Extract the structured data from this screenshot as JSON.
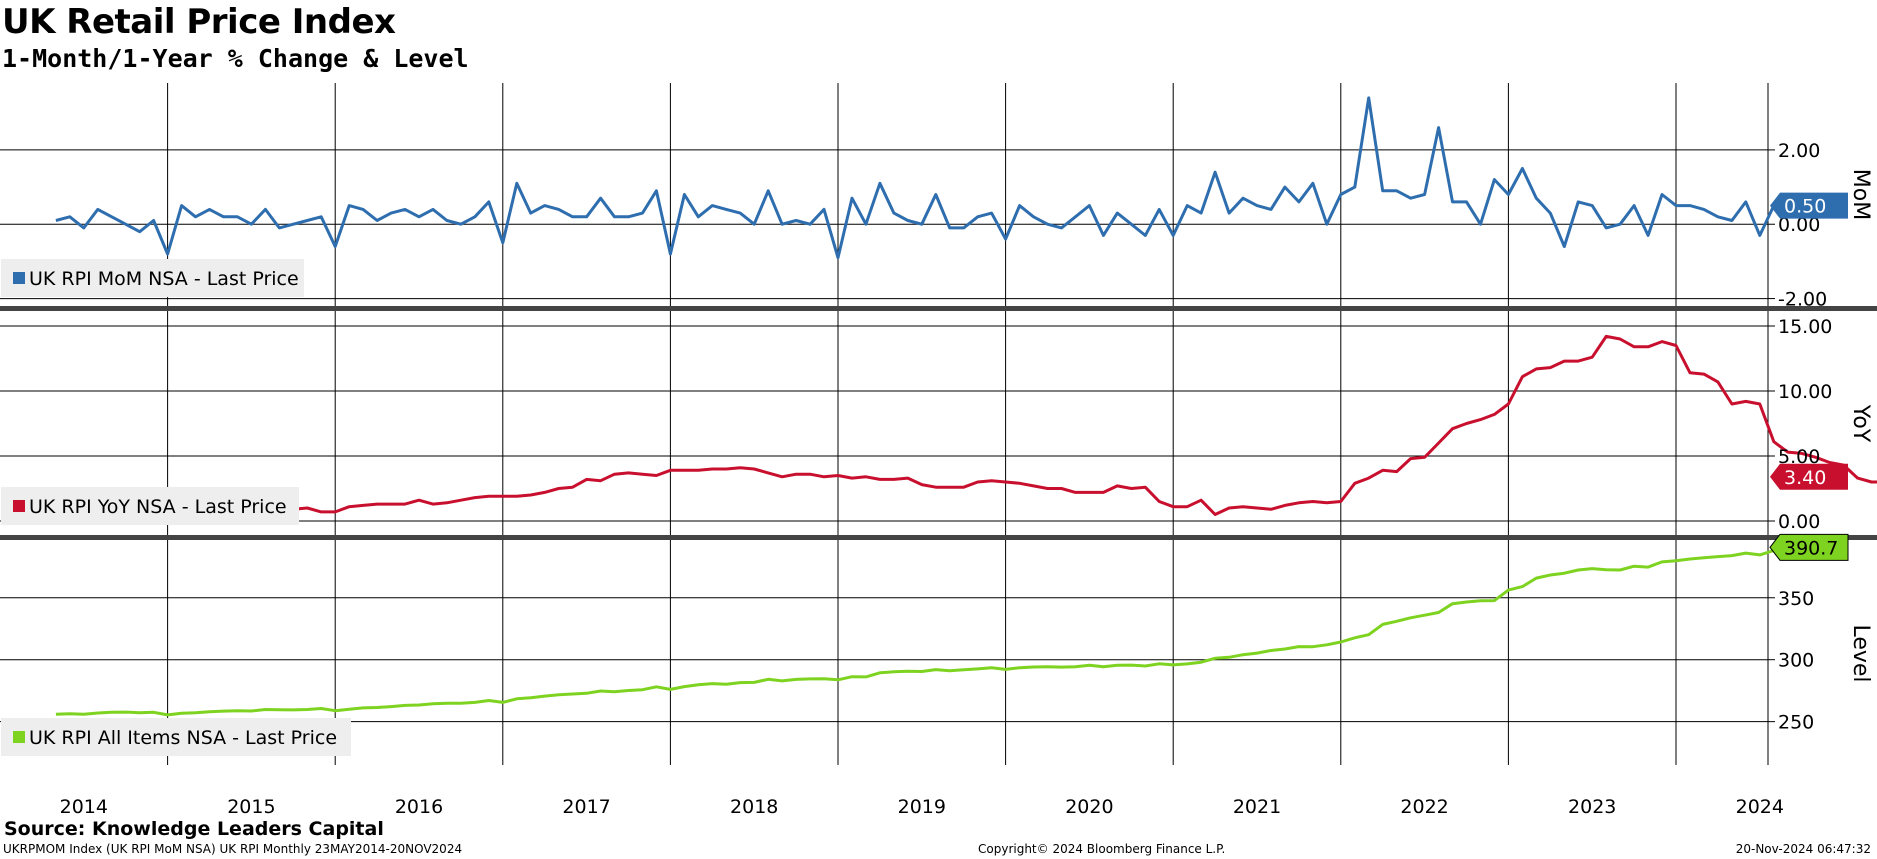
{
  "title": "UK Retail Price Index",
  "subtitle": "1-Month/1-Year % Change & Level",
  "source": "Source: Knowledge Leaders Capital",
  "footer": {
    "left": "UKRPMOM Index (UK RPI MoM NSA) UK RPI  Monthly 23MAY2014-20NOV2024",
    "center": "Copyright© 2024 Bloomberg Finance L.P.",
    "right": "20-Nov-2024 06:47:32"
  },
  "colors": {
    "mom": "#2e6eaf",
    "yoy": "#c8102e",
    "level": "#7ed321"
  },
  "chart_data": [
    {
      "type": "line",
      "axis_title": "MoM",
      "series": [
        {
          "name": "UK RPI MoM NSA - Last Price",
          "last_label": "0.50",
          "start": "2014-05",
          "values": [
            0.1,
            0.2,
            -0.1,
            0.4,
            0.2,
            0.0,
            -0.2,
            0.1,
            -0.8,
            0.5,
            0.2,
            0.4,
            0.2,
            0.2,
            0.0,
            0.4,
            -0.1,
            0.0,
            0.1,
            0.2,
            -0.6,
            0.5,
            0.4,
            0.1,
            0.3,
            0.4,
            0.2,
            0.4,
            0.1,
            0.0,
            0.2,
            0.6,
            -0.5,
            1.1,
            0.3,
            0.5,
            0.4,
            0.2,
            0.2,
            0.7,
            0.2,
            0.2,
            0.3,
            0.9,
            -0.8,
            0.8,
            0.2,
            0.5,
            0.4,
            0.3,
            0.0,
            0.9,
            0.0,
            0.1,
            0.0,
            0.4,
            -0.9,
            0.7,
            0.0,
            1.1,
            0.3,
            0.1,
            0.0,
            0.8,
            -0.1,
            -0.1,
            0.2,
            0.3,
            -0.4,
            0.5,
            0.2,
            0.0,
            -0.1,
            0.2,
            0.5,
            -0.3,
            0.3,
            0.0,
            -0.3,
            0.4,
            -0.3,
            0.5,
            0.3,
            1.4,
            0.3,
            0.7,
            0.5,
            0.4,
            1.0,
            0.6,
            1.1,
            0.0,
            0.8,
            1.0,
            3.4,
            0.9,
            0.9,
            0.7,
            0.8,
            2.6,
            0.6,
            0.6,
            0.0,
            1.2,
            0.8,
            1.5,
            0.7,
            0.3,
            -0.6,
            0.6,
            0.5,
            -0.1,
            0.0,
            0.5,
            -0.3,
            0.8,
            0.5,
            0.5,
            0.4,
            0.2,
            0.1,
            0.6,
            -0.3,
            0.5
          ]
        }
      ],
      "yticks": [
        "2.00",
        "0.00",
        "-2.00"
      ],
      "ylim": [
        -2.2,
        3.8
      ]
    },
    {
      "type": "line",
      "axis_title": "YoY",
      "series": [
        {
          "name": "UK RPI YoY NSA - Last Price",
          "last_label": "3.40",
          "start": "2014-05",
          "values": [
            2.4,
            2.5,
            2.5,
            2.4,
            2.3,
            2.3,
            2.3,
            2.1,
            1.9,
            1.6,
            1.0,
            0.9,
            0.9,
            0.8,
            0.8,
            0.9,
            0.9,
            0.9,
            1.0,
            0.7,
            0.7,
            1.1,
            1.2,
            1.3,
            1.3,
            1.3,
            1.6,
            1.3,
            1.4,
            1.6,
            1.8,
            1.9,
            1.9,
            1.9,
            2.0,
            2.2,
            2.5,
            2.6,
            3.2,
            3.1,
            3.6,
            3.7,
            3.6,
            3.5,
            3.9,
            3.9,
            3.9,
            4.0,
            4.0,
            4.1,
            4.0,
            3.7,
            3.4,
            3.6,
            3.6,
            3.4,
            3.5,
            3.3,
            3.4,
            3.2,
            3.2,
            3.3,
            2.8,
            2.6,
            2.6,
            2.6,
            3.0,
            3.1,
            3.0,
            2.9,
            2.7,
            2.5,
            2.5,
            2.2,
            2.2,
            2.2,
            2.7,
            2.5,
            2.6,
            1.5,
            1.1,
            1.1,
            1.6,
            0.5,
            1.0,
            1.1,
            1.0,
            0.9,
            1.2,
            1.4,
            1.5,
            1.4,
            1.5,
            2.9,
            3.3,
            3.9,
            3.8,
            4.8,
            4.9,
            6.0,
            7.1,
            7.5,
            7.8,
            8.2,
            9.0,
            11.1,
            11.7,
            11.8,
            12.3,
            12.3,
            12.6,
            14.2,
            14.0,
            13.4,
            13.4,
            13.8,
            13.5,
            11.4,
            11.3,
            10.7,
            9.0,
            9.2,
            9.0,
            6.1,
            5.3,
            5.2,
            4.9,
            4.5,
            4.3,
            3.3,
            3.0,
            3.0,
            3.6,
            3.5,
            2.7,
            3.4
          ]
        }
      ],
      "yticks": [
        "15.00",
        "10.00",
        "5.00",
        "0.00"
      ],
      "ylim": [
        -1.0,
        16.0
      ]
    },
    {
      "type": "line",
      "axis_title": "Level",
      "series": [
        {
          "name": "UK RPI All Items NSA - Last Price",
          "last_label": "390.7",
          "start": "2014-05",
          "values": [
            255.9,
            256.3,
            256.0,
            257.0,
            257.6,
            257.7,
            257.1,
            257.5,
            255.4,
            256.7,
            257.1,
            258.0,
            258.5,
            258.8,
            258.6,
            259.8,
            259.6,
            259.5,
            259.8,
            260.6,
            258.8,
            260.0,
            261.1,
            261.4,
            262.1,
            263.1,
            263.4,
            264.4,
            264.9,
            264.8,
            265.5,
            267.1,
            265.5,
            268.4,
            269.3,
            270.6,
            271.7,
            272.3,
            272.9,
            274.7,
            274.2,
            275.1,
            275.8,
            278.1,
            276.0,
            278.3,
            279.7,
            280.7,
            280.1,
            281.5,
            281.7,
            284.2,
            282.9,
            284.1,
            284.5,
            284.6,
            283.8,
            286.3,
            286.1,
            289.4,
            290.2,
            290.6,
            290.5,
            292.0,
            291.0,
            291.9,
            292.6,
            293.5,
            292.2,
            293.5,
            294.1,
            294.3,
            294.0,
            294.3,
            295.5,
            294.3,
            295.5,
            295.6,
            294.9,
            296.7,
            295.8,
            296.6,
            298.0,
            301.1,
            301.9,
            304.0,
            305.3,
            307.4,
            308.6,
            310.6,
            310.5,
            312.0,
            314.3,
            317.7,
            320.2,
            328.5,
            331.0,
            333.8,
            335.9,
            338.1,
            345.2,
            346.6,
            347.6,
            347.7,
            356.2,
            359.0,
            365.9,
            368.4,
            369.8,
            372.4,
            373.5,
            372.6,
            372.4,
            375.5,
            374.7,
            378.9,
            379.9,
            381.3,
            382.3,
            383.2,
            384.0,
            386.0,
            384.6,
            388.1,
            387.2,
            390.7
          ]
        }
      ],
      "yticks": [
        "350",
        "300",
        "250"
      ],
      "ylim": [
        215,
        395
      ]
    }
  ],
  "x_axis": {
    "years": [
      "2014",
      "2015",
      "2016",
      "2017",
      "2018",
      "2019",
      "2020",
      "2021",
      "2022",
      "2023",
      "2024"
    ],
    "range": [
      "2014-01",
      "2024-12"
    ]
  }
}
